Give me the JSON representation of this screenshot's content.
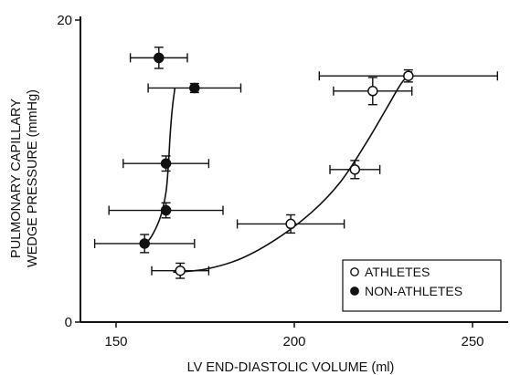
{
  "chart_data": {
    "type": "scatter",
    "xlabel": "LV END-DIASTOLIC VOLUME (ml)",
    "ylabel_lines": [
      "PULMONARY CAPILLARY",
      "WEDGE PRESSURE (mmHg)"
    ],
    "xlim": [
      140,
      260
    ],
    "ylim": [
      0,
      20
    ],
    "x_ticks": [
      150,
      200,
      250
    ],
    "y_ticks": [
      0,
      20
    ],
    "grid": false,
    "legend_position": "bottom-right",
    "series": [
      {
        "name": "ATHLETES",
        "marker": "open-circle",
        "points": [
          {
            "x": 168,
            "y": 3.4,
            "xerr": 8,
            "yerr": 0.5
          },
          {
            "x": 199,
            "y": 6.5,
            "xerr": 15,
            "yerr": 0.6
          },
          {
            "x": 217,
            "y": 10.1,
            "xerr": 7,
            "yerr": 0.6
          },
          {
            "x": 222,
            "y": 15.3,
            "xerr": 11,
            "yerr": 0.9
          },
          {
            "x": 232,
            "y": 16.3,
            "xerr": 25,
            "yerr": 0.4
          }
        ],
        "curve": [
          [
            166,
            3.3
          ],
          [
            175,
            3.5
          ],
          [
            185,
            4.2
          ],
          [
            195,
            5.5
          ],
          [
            205,
            7.3
          ],
          [
            213,
            9.3
          ],
          [
            220,
            11.8
          ],
          [
            226,
            14.2
          ],
          [
            230,
            15.8
          ],
          [
            233,
            16.6
          ]
        ]
      },
      {
        "name": "NON-ATHLETES",
        "marker": "filled-circle",
        "points": [
          {
            "x": 158,
            "y": 5.2,
            "xerr": 14,
            "yerr": 0.6
          },
          {
            "x": 164,
            "y": 7.4,
            "xerr": 16,
            "yerr": 0.5
          },
          {
            "x": 164,
            "y": 10.5,
            "xerr": 12,
            "yerr": 0.5
          },
          {
            "x": 172,
            "y": 15.5,
            "xerr": 13,
            "yerr": 0.3
          },
          {
            "x": 162,
            "y": 17.5,
            "xerr": 8,
            "yerr": 0.7
          }
        ],
        "curve": [
          [
            157.5,
            5.0
          ],
          [
            160,
            5.7
          ],
          [
            162.5,
            7.0
          ],
          [
            164,
            8.6
          ],
          [
            164.7,
            10.5
          ],
          [
            165.2,
            12.5
          ],
          [
            165.8,
            14.2
          ],
          [
            166.5,
            15.5
          ]
        ]
      }
    ]
  }
}
